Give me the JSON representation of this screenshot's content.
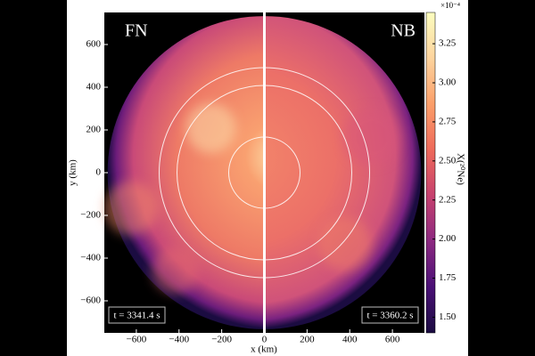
{
  "chart_data": {
    "type": "image",
    "panels": [
      "FN",
      "NB"
    ],
    "time_labels": [
      "t = 3341.4 s",
      "t = 3360.2 s"
    ],
    "xlabel": "x (km)",
    "ylabel": "y (km)",
    "xlim": [
      -750,
      750
    ],
    "ylim": [
      -750,
      750
    ],
    "xticks": [
      {
        "value": -600,
        "label": "−600"
      },
      {
        "value": -400,
        "label": "−400"
      },
      {
        "value": -200,
        "label": "−200"
      },
      0,
      200,
      400,
      600
    ],
    "yticks": [
      {
        "value": -600,
        "label": "−600"
      },
      {
        "value": -400,
        "label": "−400"
      },
      {
        "value": -200,
        "label": "−200"
      },
      0,
      200,
      400,
      600
    ],
    "colorbar": {
      "label": "X(²⁰Ne)",
      "multiplier": "×10⁻⁴",
      "lim": [
        1.4,
        3.45
      ],
      "ticks": [
        {
          "value": 1.5,
          "label": "1.50"
        },
        {
          "value": 1.75,
          "label": "1.75"
        },
        {
          "value": 2.0,
          "label": "2.00"
        },
        {
          "value": 2.25,
          "label": "2.25"
        },
        {
          "value": 2.5,
          "label": "2.50"
        },
        {
          "value": 2.75,
          "label": "2.75"
        },
        {
          "value": 3.0,
          "label": "3.00"
        },
        {
          "value": 3.25,
          "label": "3.25"
        }
      ],
      "colors": [
        "#1b0c41",
        "#4a1076",
        "#8c2981",
        "#c6416e",
        "#ee6a5b",
        "#fb9f6a",
        "#fdd49e",
        "#fcfdbf"
      ]
    }
  }
}
